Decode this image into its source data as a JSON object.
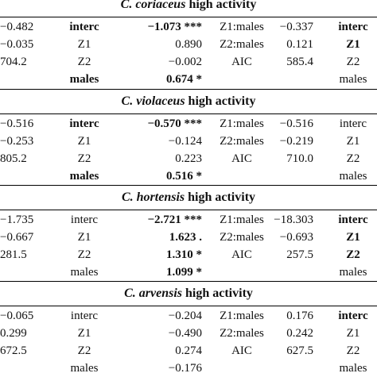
{
  "sections": [
    {
      "species": "C. coriaceus",
      "suffix": " high activity",
      "rows": [
        [
          "−0.482",
          "interc",
          "−1.073 ***",
          "Z1:males",
          "−0.337",
          "interc"
        ],
        [
          "−0.035",
          "Z1",
          "0.890",
          "Z2:males",
          "0.121",
          "Z1"
        ],
        [
          "704.2",
          "Z2",
          "−0.002",
          "AIC",
          "585.4",
          "Z2"
        ],
        [
          "",
          "males",
          "0.674 *",
          "",
          "",
          "males"
        ]
      ],
      "bold": [
        [
          0,
          1
        ],
        [
          0,
          2
        ],
        [
          0,
          5
        ],
        [
          1,
          5
        ],
        [
          3,
          1
        ],
        [
          3,
          2
        ]
      ]
    },
    {
      "species": "C. violaceus",
      "suffix": " high activity",
      "rows": [
        [
          "−0.516",
          "interc",
          "−0.570 ***",
          "Z1:males",
          "−0.516",
          "interc"
        ],
        [
          "−0.253",
          "Z1",
          "−0.124",
          "Z2:males",
          "−0.219",
          "Z1"
        ],
        [
          "805.2",
          "Z2",
          "0.223",
          "AIC",
          "710.0",
          "Z2"
        ],
        [
          "",
          "males",
          "0.516 *",
          "",
          "",
          "males"
        ]
      ],
      "bold": [
        [
          0,
          1
        ],
        [
          0,
          2
        ],
        [
          3,
          1
        ],
        [
          3,
          2
        ]
      ]
    },
    {
      "species": "C. hortensis",
      "suffix": " high activity",
      "rows": [
        [
          "−1.735",
          "interc",
          "−2.721 ***",
          "Z1:males",
          "−18.303",
          "interc"
        ],
        [
          "−0.667",
          "Z1",
          "1.623 .",
          "Z2:males",
          "−0.693",
          "Z1"
        ],
        [
          "281.5",
          "Z2",
          "1.310 *",
          "AIC",
          "257.5",
          "Z2"
        ],
        [
          "",
          "males",
          "1.099 *",
          "",
          "",
          "males"
        ]
      ],
      "bold": [
        [
          0,
          2
        ],
        [
          0,
          5
        ],
        [
          1,
          2
        ],
        [
          1,
          5
        ],
        [
          2,
          2
        ],
        [
          2,
          5
        ],
        [
          3,
          2
        ]
      ]
    },
    {
      "species": "C. arvensis",
      "suffix": " high activity",
      "rows": [
        [
          "−0.065",
          "interc",
          "−0.204",
          "Z1:males",
          "0.176",
          "interc"
        ],
        [
          "0.299",
          "Z1",
          "−0.490",
          "Z2:males",
          "0.242",
          "Z1"
        ],
        [
          "672.5",
          "Z2",
          "0.274",
          "AIC",
          "627.5",
          "Z2"
        ],
        [
          "",
          "males",
          "−0.176",
          "",
          "",
          "males"
        ]
      ],
      "bold": [
        [
          0,
          5
        ]
      ]
    }
  ]
}
